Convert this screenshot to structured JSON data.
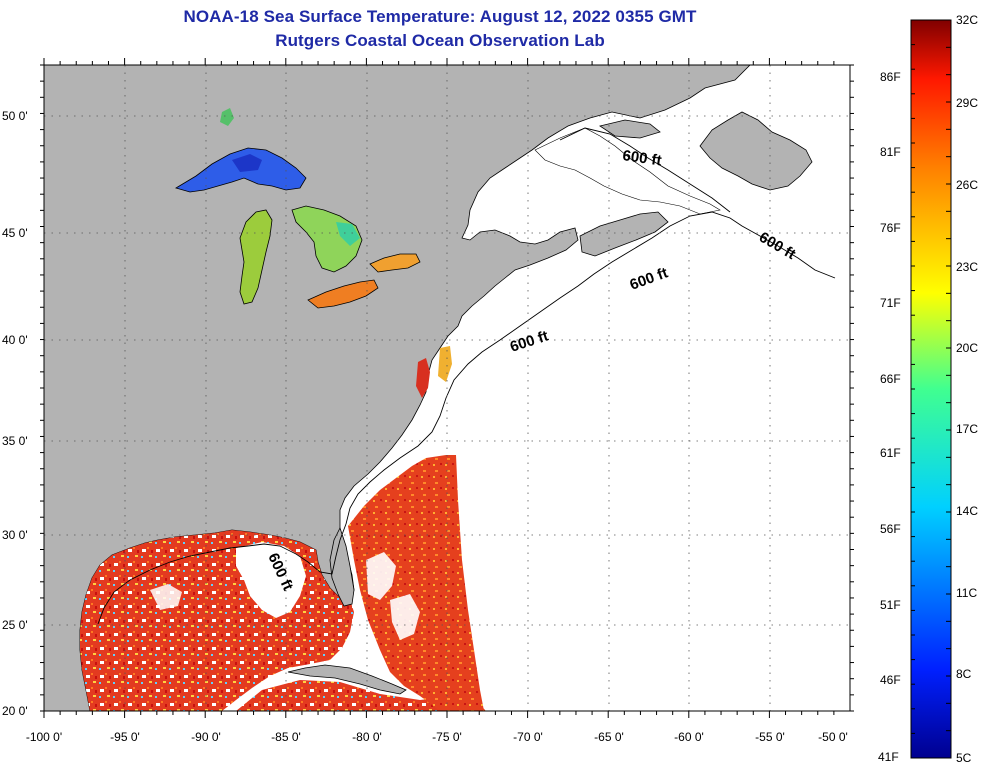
{
  "header": {
    "title": "NOAA-18 Sea Surface Temperature:  August 12, 2022 0355 GMT",
    "subtitle": "Rutgers Coastal Ocean Observation Lab"
  },
  "map": {
    "lon_ticks": [
      "-100 0'",
      "-95 0'",
      "-90 0'",
      "-85 0'",
      "-80 0'",
      "-75 0'",
      "-70 0'",
      "-65 0'",
      "-60 0'",
      "-55 0'",
      "-50 0'"
    ],
    "lat_ticks": [
      "50 0'",
      "45 0'",
      "40 0'",
      "35 0'",
      "30 0'",
      "25 0'",
      "20 0'"
    ],
    "contour_labels": [
      "600 ft",
      "600 ft",
      "600 ft",
      "600 ft",
      "600 ft"
    ],
    "colors": {
      "land": "#b3b3b3",
      "ocean_no_data": "#ffffff",
      "warm_sst": "#e8321e",
      "lake_superior": "#2d55e0",
      "lake_michigan": "#9fd040",
      "lake_erie": "#f08a2a"
    }
  },
  "colorbar": {
    "celsius_labels": [
      "32C",
      "29C",
      "26C",
      "23C",
      "20C",
      "17C",
      "14C",
      "11C",
      "8C",
      "5C"
    ],
    "fahrenheit_labels": [
      "86F",
      "81F",
      "76F",
      "71F",
      "66F",
      "61F",
      "56F",
      "51F",
      "46F",
      "41F"
    ],
    "min_c": 5,
    "max_c": 32
  }
}
